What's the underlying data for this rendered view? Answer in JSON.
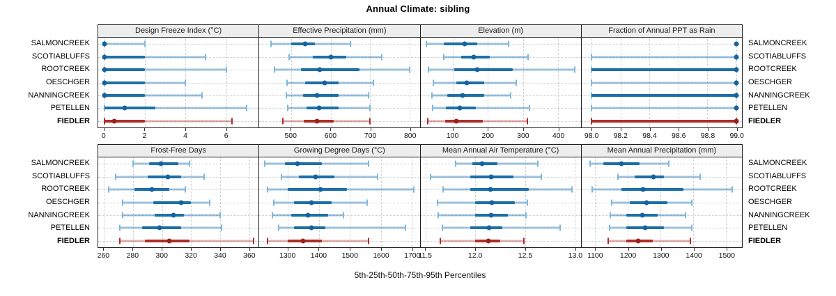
{
  "ui": {
    "title": "Annual Climate: sibling",
    "axis_caption": "5th-25th-50th-75th-95th Percentiles"
  },
  "chart_data": {
    "type": "scatter",
    "subtype": "percentile-interval-dotplot",
    "title": "Annual Climate: sibling",
    "xlabel": "5th-25th-50th-75th-95th Percentiles",
    "ylabel": "",
    "grid": "dotted",
    "legend_position": "none",
    "percentile_levels": [
      "5th",
      "25th",
      "50th",
      "75th",
      "95th"
    ],
    "sites": [
      "SALMONCREEK",
      "SCOTIABLUFFS",
      "ROOTCREEK",
      "OESCHGER",
      "NANNINGCREEK",
      "PETELLEN",
      "FIEDLER"
    ],
    "highlight_site": "FIEDLER",
    "colors": {
      "site_outer": "rgba(45,125,185,0.45)",
      "site_iqr": "#1d6fa8",
      "site_cap": "#7db8de",
      "site_dot": "#15639e",
      "highlight_outer": "rgba(176,48,44,0.38)",
      "highlight_iqr": "#ad2e29",
      "highlight_cap": "#ad2e29",
      "highlight_dot": "#9c201c",
      "grid": "#c9c9c9",
      "border": "#1f1f1f",
      "header_bg": "#ededed"
    },
    "panels": [
      {
        "label": "Design Freeze Index (°C)",
        "xlim": [
          -0.3,
          7.6
        ],
        "ticks": [
          0,
          2,
          4,
          6
        ],
        "tick_labels": [
          "0",
          "2",
          "4",
          "6"
        ],
        "values": [
          [
            0,
            0,
            0,
            0,
            2
          ],
          [
            0,
            0,
            0,
            2,
            5
          ],
          [
            0,
            0,
            0,
            2,
            6
          ],
          [
            0,
            0,
            0,
            2,
            4
          ],
          [
            0,
            0,
            0,
            2,
            4.8
          ],
          [
            0,
            0,
            1,
            2.5,
            7
          ],
          [
            0,
            0,
            0.5,
            2,
            6.3
          ]
        ]
      },
      {
        "label": "Effective Precipitation (mm)",
        "xlim": [
          420,
          825
        ],
        "ticks": [
          500,
          600,
          700,
          800
        ],
        "tick_labels": [
          "500",
          "600",
          "700",
          "800"
        ],
        "values": [
          [
            450,
            500,
            535,
            560,
            650
          ],
          [
            495,
            555,
            600,
            640,
            730
          ],
          [
            458,
            525,
            572,
            672,
            800
          ],
          [
            490,
            535,
            585,
            620,
            708
          ],
          [
            488,
            530,
            565,
            620,
            695
          ],
          [
            492,
            540,
            570,
            620,
            700
          ],
          [
            480,
            532,
            565,
            608,
            700
          ]
        ]
      },
      {
        "label": "Elevation (m)",
        "xlim": [
          8,
          465
        ],
        "ticks": [
          100,
          200,
          300,
          400
        ],
        "tick_labels": [
          "100",
          "200",
          "300",
          "400"
        ],
        "values": [
          [
            25,
            75,
            135,
            170,
            260
          ],
          [
            75,
            125,
            160,
            205,
            315
          ],
          [
            30,
            105,
            170,
            270,
            447
          ],
          [
            45,
            110,
            140,
            190,
            280
          ],
          [
            40,
            85,
            128,
            190,
            265
          ],
          [
            42,
            80,
            120,
            165,
            318
          ],
          [
            28,
            78,
            110,
            185,
            313
          ]
        ]
      },
      {
        "label": "Fraction of Annual PPT as Rain",
        "xlim": [
          97.93,
          99.04
        ],
        "ticks": [
          98.0,
          98.2,
          98.4,
          98.6,
          98.8,
          99.0
        ],
        "tick_labels": [
          "98.0",
          "98.2",
          "98.4",
          "98.6",
          "98.8",
          "99.0"
        ],
        "values": [
          [
            99,
            99,
            99,
            99,
            99
          ],
          [
            98,
            99,
            99,
            99,
            99
          ],
          [
            98,
            98,
            99,
            99,
            99
          ],
          [
            98,
            99,
            99,
            99,
            99
          ],
          [
            98,
            98,
            99,
            99,
            99
          ],
          [
            98,
            99,
            99,
            99,
            99
          ],
          [
            98,
            98,
            99,
            99,
            99
          ]
        ]
      },
      {
        "label": "Frost-Free Days",
        "xlim": [
          256,
          366.5
        ],
        "ticks": [
          260,
          280,
          300,
          320,
          340,
          360
        ],
        "tick_labels": [
          "260",
          "280",
          "300",
          "320",
          "340",
          "360"
        ],
        "values": [
          [
            280,
            291,
            299,
            311,
            319
          ],
          [
            268,
            290,
            304,
            313,
            329
          ],
          [
            263,
            281,
            293,
            305,
            316
          ],
          [
            273,
            294,
            313,
            320,
            333
          ],
          [
            273,
            295,
            308,
            315,
            340
          ],
          [
            271,
            286,
            298,
            313,
            341
          ],
          [
            271,
            288,
            305,
            319,
            363
          ]
        ]
      },
      {
        "label": "Growing Degree Days (°C)",
        "xlim": [
          1208,
          1725
        ],
        "ticks": [
          1300,
          1400,
          1500,
          1600,
          1700
        ],
        "tick_labels": [
          "1300",
          "1400",
          "1500",
          "1600",
          "1700"
        ],
        "values": [
          [
            1225,
            1290,
            1330,
            1410,
            1560
          ],
          [
            1280,
            1335,
            1390,
            1450,
            1590
          ],
          [
            1235,
            1300,
            1405,
            1490,
            1705
          ],
          [
            1255,
            1320,
            1375,
            1440,
            1555
          ],
          [
            1250,
            1310,
            1365,
            1430,
            1480
          ],
          [
            1270,
            1320,
            1375,
            1420,
            1680
          ],
          [
            1235,
            1300,
            1348,
            1410,
            1560
          ]
        ]
      },
      {
        "label": "Mean Annual Air Temperature (°C)",
        "xlim": [
          11.45,
          13.06
        ],
        "ticks": [
          11.5,
          12.0,
          12.5,
          13.0
        ],
        "tick_labels": [
          "11.5",
          "12.0",
          "12.5",
          "13.0"
        ],
        "values": [
          [
            11.8,
            11.97,
            12.07,
            12.22,
            12.63
          ],
          [
            11.55,
            11.95,
            12.16,
            12.38,
            12.66
          ],
          [
            11.68,
            11.95,
            12.15,
            12.54,
            12.97
          ],
          [
            11.62,
            12.0,
            12.17,
            12.4,
            12.52
          ],
          [
            11.63,
            12.0,
            12.16,
            12.33,
            12.51
          ],
          [
            11.67,
            11.95,
            12.14,
            12.27,
            12.85
          ],
          [
            11.65,
            12.0,
            12.13,
            12.25,
            12.49
          ]
        ]
      },
      {
        "label": "Mean Annual Precipitation (mm)",
        "xlim": [
          1058,
          1548
        ],
        "ticks": [
          1100,
          1200,
          1300,
          1400,
          1500
        ],
        "tick_labels": [
          "1100",
          "1200",
          "1300",
          "1400",
          "1500"
        ],
        "values": [
          [
            1085,
            1125,
            1180,
            1235,
            1325
          ],
          [
            1170,
            1220,
            1278,
            1310,
            1420
          ],
          [
            1090,
            1180,
            1245,
            1370,
            1518
          ],
          [
            1150,
            1205,
            1257,
            1320,
            1395
          ],
          [
            1145,
            1195,
            1243,
            1290,
            1375
          ],
          [
            1143,
            1195,
            1252,
            1310,
            1395
          ],
          [
            1140,
            1195,
            1230,
            1275,
            1390
          ]
        ]
      }
    ]
  }
}
